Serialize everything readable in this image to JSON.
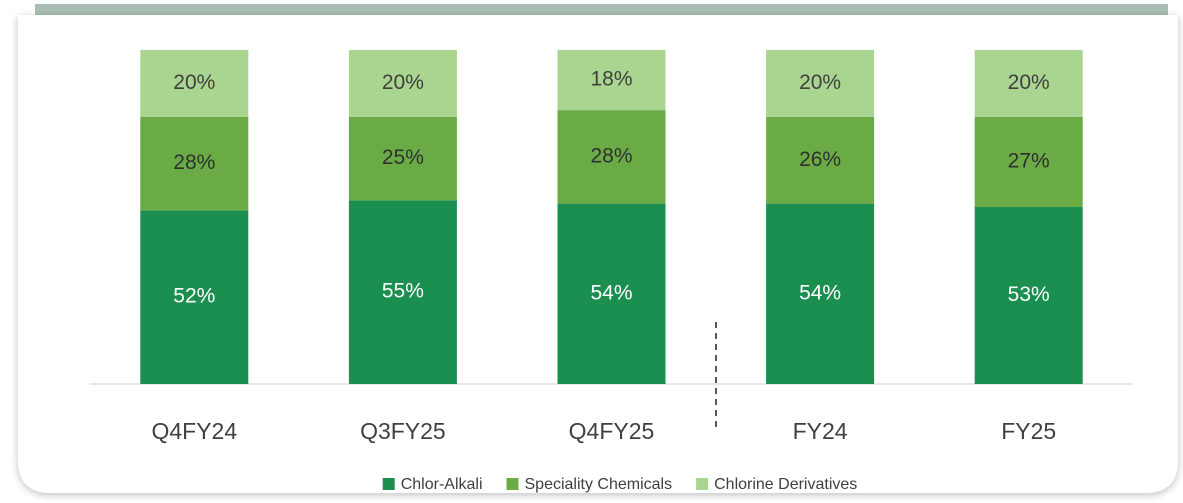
{
  "chart_data": {
    "type": "stacked_bar",
    "categories": [
      "Q4FY24",
      "Q3FY25",
      "Q4FY25",
      "FY24",
      "FY25"
    ],
    "series": [
      {
        "name": "Chlor-Alkali",
        "color": "#1b8f4f",
        "values": [
          52,
          55,
          54,
          54,
          53
        ],
        "value_labels": [
          "52%",
          "55%",
          "54%",
          "54%",
          "53%"
        ]
      },
      {
        "name": "Speciality Chemicals",
        "color": "#6aab46",
        "values": [
          28,
          25,
          28,
          26,
          27
        ],
        "value_labels": [
          "28%",
          "25%",
          "28%",
          "26%",
          "27%"
        ]
      },
      {
        "name": "Chlorine Derivatives",
        "color": "#a9d590",
        "values": [
          20,
          20,
          18,
          20,
          20
        ],
        "value_labels": [
          "20%",
          "20%",
          "18%",
          "20%",
          "20%"
        ]
      }
    ],
    "ylim": [
      0,
      100
    ],
    "legend": "bottom"
  }
}
